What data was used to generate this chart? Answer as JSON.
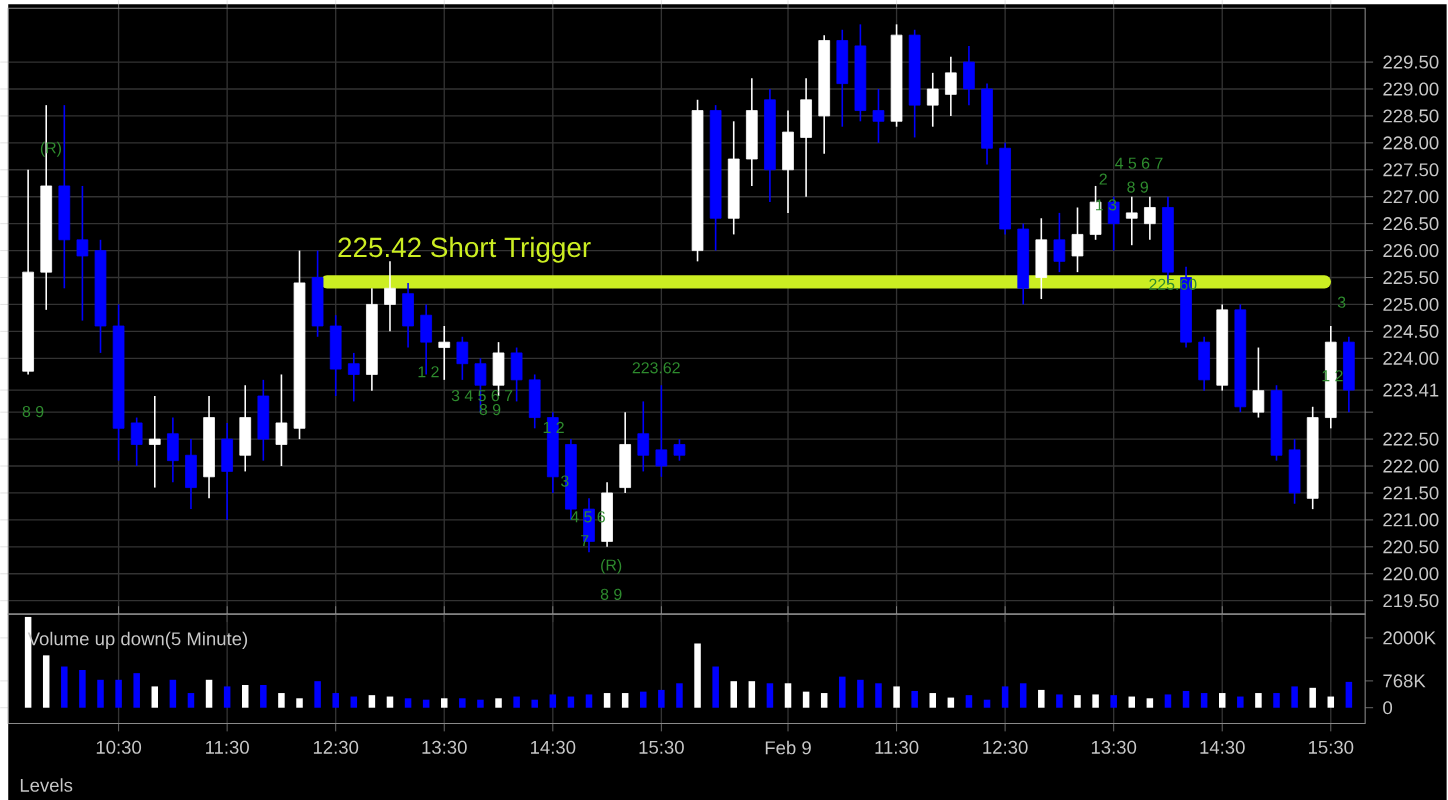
{
  "chart_data": [
    {
      "type": "candlestick",
      "ylim": [
        219.25,
        230.5
      ],
      "grid": true,
      "tick_labels": "y",
      "categories": [
        null,
        null,
        null,
        null,
        null,
        null,
        null,
        null,
        null,
        null,
        null,
        null,
        null,
        null,
        null,
        null,
        null,
        null,
        null,
        null,
        null,
        null,
        null,
        null,
        null,
        null,
        null,
        null,
        null,
        null,
        null,
        null,
        null,
        null,
        null,
        null,
        null,
        null,
        null,
        null,
        null,
        null,
        null,
        null,
        null,
        null,
        null,
        null,
        null,
        null,
        null,
        null,
        null,
        null,
        null,
        null,
        null,
        null,
        null,
        null,
        null,
        null,
        null,
        null,
        null,
        null,
        null,
        null,
        null,
        null,
        null,
        null,
        null,
        null
      ],
      "ohlc": [
        [
          223.76,
          227.5,
          223.7,
          225.6
        ],
        [
          225.6,
          228.7,
          224.9,
          227.2
        ],
        [
          227.2,
          228.7,
          225.3,
          226.2
        ],
        [
          226.2,
          227.2,
          224.7,
          225.9
        ],
        [
          226.0,
          226.2,
          224.1,
          224.6
        ],
        [
          224.6,
          225.0,
          222.1,
          222.7
        ],
        [
          222.8,
          222.9,
          222.0,
          222.4
        ],
        [
          222.4,
          223.3,
          221.6,
          222.5
        ],
        [
          222.6,
          222.9,
          221.7,
          222.1
        ],
        [
          222.2,
          222.5,
          221.2,
          221.6
        ],
        [
          221.8,
          223.3,
          221.4,
          222.9
        ],
        [
          222.5,
          222.8,
          221.0,
          221.9
        ],
        [
          222.2,
          223.5,
          221.9,
          222.9
        ],
        [
          223.3,
          223.6,
          222.1,
          222.5
        ],
        [
          222.4,
          223.7,
          222.0,
          222.8
        ],
        [
          222.7,
          226.0,
          222.5,
          225.4
        ],
        [
          225.5,
          226.0,
          224.4,
          224.6
        ],
        [
          224.6,
          224.8,
          223.3,
          223.8
        ],
        [
          223.9,
          224.1,
          223.2,
          223.7
        ],
        [
          223.7,
          225.3,
          223.4,
          225.0
        ],
        [
          225.0,
          225.8,
          224.5,
          225.3
        ],
        [
          225.2,
          225.4,
          224.2,
          224.6
        ],
        [
          224.8,
          225.0,
          223.7,
          224.3
        ],
        [
          224.2,
          224.6,
          223.6,
          224.3
        ],
        [
          224.3,
          224.4,
          223.6,
          223.9
        ],
        [
          223.9,
          224.0,
          223.0,
          223.5
        ],
        [
          223.5,
          224.3,
          223.3,
          224.1
        ],
        [
          224.1,
          224.2,
          223.2,
          223.6
        ],
        [
          223.6,
          223.7,
          222.7,
          222.9
        ],
        [
          222.9,
          223.0,
          221.5,
          221.8
        ],
        [
          222.4,
          222.5,
          221.0,
          221.2
        ],
        [
          221.2,
          221.4,
          220.4,
          220.6
        ],
        [
          220.6,
          221.7,
          220.5,
          221.5
        ],
        [
          221.6,
          223.0,
          221.5,
          222.4
        ],
        [
          222.6,
          223.2,
          221.9,
          222.2
        ],
        [
          222.3,
          223.5,
          221.8,
          222.0
        ],
        [
          222.4,
          222.5,
          222.1,
          222.2
        ],
        [
          226.0,
          228.8,
          225.8,
          228.6
        ],
        [
          228.6,
          228.7,
          226.0,
          226.6
        ],
        [
          226.6,
          228.4,
          226.3,
          227.7
        ],
        [
          227.7,
          229.2,
          227.2,
          228.6
        ],
        [
          228.8,
          229.0,
          226.9,
          227.5
        ],
        [
          227.5,
          228.6,
          226.7,
          228.2
        ],
        [
          228.1,
          229.2,
          227.0,
          228.8
        ],
        [
          228.5,
          230.0,
          227.8,
          229.9
        ],
        [
          229.9,
          230.1,
          228.3,
          229.1
        ],
        [
          229.8,
          230.2,
          228.4,
          228.6
        ],
        [
          228.6,
          229.0,
          228.0,
          228.4
        ],
        [
          228.4,
          230.2,
          228.3,
          230.0
        ],
        [
          230.0,
          230.1,
          228.1,
          228.7
        ],
        [
          228.7,
          229.3,
          228.3,
          229.0
        ],
        [
          228.9,
          229.6,
          228.5,
          229.3
        ],
        [
          229.5,
          229.8,
          228.7,
          229.0
        ],
        [
          229.0,
          229.1,
          227.6,
          227.9
        ],
        [
          227.9,
          228.0,
          226.3,
          226.4
        ],
        [
          226.4,
          226.5,
          225.0,
          225.3
        ],
        [
          225.5,
          226.6,
          225.1,
          226.2
        ],
        [
          226.2,
          226.7,
          225.6,
          225.8
        ],
        [
          225.9,
          226.8,
          225.6,
          226.3
        ],
        [
          226.3,
          227.2,
          226.2,
          226.9
        ],
        [
          226.9,
          227.0,
          226.0,
          226.5
        ],
        [
          226.6,
          227.0,
          226.1,
          226.7
        ],
        [
          226.5,
          227.0,
          226.2,
          226.8
        ],
        [
          226.8,
          227.0,
          225.4,
          225.6
        ],
        [
          225.5,
          225.7,
          224.2,
          224.3
        ],
        [
          224.3,
          224.4,
          223.4,
          223.6
        ],
        [
          223.5,
          225.0,
          223.4,
          224.9
        ],
        [
          224.9,
          225.0,
          223.0,
          223.1
        ],
        [
          223.0,
          224.2,
          222.9,
          223.4
        ],
        [
          223.4,
          223.5,
          222.1,
          222.2
        ],
        [
          222.3,
          222.5,
          221.3,
          221.5
        ],
        [
          221.4,
          223.1,
          221.2,
          222.9
        ],
        [
          222.9,
          224.6,
          222.7,
          224.3
        ],
        [
          224.3,
          224.4,
          223.0,
          223.41
        ]
      ],
      "colors": [
        "#ffffff",
        "#ffffff",
        "#0000ff",
        "#0000ff",
        "#0000ff",
        "#0000ff",
        "#0000ff",
        "#ffffff",
        "#0000ff",
        "#0000ff",
        "#ffffff",
        "#0000ff",
        "#ffffff",
        "#0000ff",
        "#ffffff",
        "#ffffff",
        "#0000ff",
        "#0000ff",
        "#0000ff",
        "#ffffff",
        "#ffffff",
        "#0000ff",
        "#0000ff",
        "#ffffff",
        "#0000ff",
        "#0000ff",
        "#ffffff",
        "#0000ff",
        "#0000ff",
        "#0000ff",
        "#0000ff",
        "#0000ff",
        "#ffffff",
        "#ffffff",
        "#0000ff",
        "#0000ff",
        "#0000ff",
        "#ffffff",
        "#0000ff",
        "#ffffff",
        "#ffffff",
        "#0000ff",
        "#ffffff",
        "#ffffff",
        "#ffffff",
        "#0000ff",
        "#0000ff",
        "#0000ff",
        "#ffffff",
        "#0000ff",
        "#ffffff",
        "#ffffff",
        "#0000ff",
        "#0000ff",
        "#0000ff",
        "#0000ff",
        "#ffffff",
        "#0000ff",
        "#ffffff",
        "#ffffff",
        "#0000ff",
        "#ffffff",
        "#ffffff",
        "#0000ff",
        "#0000ff",
        "#0000ff",
        "#ffffff",
        "#0000ff",
        "#ffffff",
        "#0000ff",
        "#0000ff",
        "#ffffff",
        "#ffffff",
        "#0000ff"
      ],
      "yticks": [
        {
          "value": 219.5,
          "label": "219.50"
        },
        {
          "value": 220,
          "label": "220.00"
        },
        {
          "value": 220.5,
          "label": "220.50"
        },
        {
          "value": 221,
          "label": "221.00"
        },
        {
          "value": 221.5,
          "label": "221.50"
        },
        {
          "value": 222,
          "label": "222.00"
        },
        {
          "value": 222.5,
          "label": "222.50"
        },
        {
          "value": 223,
          "label": null
        },
        {
          "value": 223.41,
          "label": "223.41"
        },
        {
          "value": 224,
          "label": "224.00"
        },
        {
          "value": 224.5,
          "label": "224.50"
        },
        {
          "value": 225,
          "label": "225.00"
        },
        {
          "value": 225.5,
          "label": "225.50"
        },
        {
          "value": 226,
          "label": "226.00"
        },
        {
          "value": 226.5,
          "label": "226.50"
        },
        {
          "value": 227,
          "label": "227.00"
        },
        {
          "value": 227.5,
          "label": "227.50"
        },
        {
          "value": 228,
          "label": "228.00"
        },
        {
          "value": 228.5,
          "label": "228.50"
        },
        {
          "value": 229,
          "label": "229.00"
        },
        {
          "value": 229.5,
          "label": "229.50"
        }
      ],
      "ref_lines": [
        {
          "axis": "y",
          "value": 225.42,
          "label": "225.42 Short Trigger",
          "color": "#ccee22"
        }
      ],
      "annotations": [
        "(R)",
        "8 9",
        "1 2",
        "3 4 5 6 7",
        "8 9",
        "1 2",
        "3",
        "4 5 6",
        "7",
        "(R)",
        "8 9",
        "223.62",
        "225.60",
        "1 3",
        "2",
        "4 5 6 7",
        "8 9",
        "3",
        "1 2"
      ]
    },
    {
      "type": "bar",
      "title": "Volume up down(5 Minute)",
      "ylim": [
        -450,
        2680
      ],
      "grid": "x",
      "categories": [
        null,
        null,
        null,
        null,
        null,
        "10:30",
        null,
        null,
        null,
        null,
        null,
        "11:30",
        null,
        null,
        null,
        null,
        null,
        "12:30",
        null,
        null,
        null,
        null,
        null,
        "13:30",
        null,
        null,
        null,
        null,
        null,
        "14:30",
        null,
        null,
        null,
        null,
        null,
        "15:30",
        null,
        null,
        null,
        null,
        null,
        null,
        "Feb 9",
        null,
        null,
        null,
        null,
        null,
        "11:30",
        null,
        null,
        null,
        null,
        null,
        "12:30",
        null,
        null,
        null,
        null,
        null,
        "13:30",
        null,
        null,
        null,
        null,
        null,
        "14:30",
        null,
        null,
        null,
        null,
        null,
        "15:30",
        null
      ],
      "values": [
        2600,
        1500,
        1180,
        1080,
        800,
        800,
        990,
        610,
        800,
        420,
        800,
        610,
        650,
        650,
        420,
        270,
        760,
        420,
        320,
        360,
        320,
        270,
        230,
        270,
        270,
        230,
        270,
        320,
        230,
        380,
        320,
        380,
        420,
        420,
        460,
        510,
        700,
        1840,
        1180,
        760,
        760,
        700,
        700,
        460,
        420,
        890,
        800,
        700,
        610,
        480,
        420,
        290,
        360,
        230,
        610,
        700,
        510,
        380,
        360,
        380,
        360,
        320,
        270,
        380,
        480,
        420,
        420,
        320,
        420,
        420,
        610,
        570,
        320,
        740
      ],
      "colors": [
        "#ffffff",
        "#ffffff",
        "#0000ff",
        "#0000ff",
        "#0000ff",
        "#0000ff",
        "#0000ff",
        "#ffffff",
        "#0000ff",
        "#0000ff",
        "#ffffff",
        "#0000ff",
        "#ffffff",
        "#0000ff",
        "#ffffff",
        "#ffffff",
        "#0000ff",
        "#0000ff",
        "#0000ff",
        "#ffffff",
        "#ffffff",
        "#0000ff",
        "#0000ff",
        "#ffffff",
        "#0000ff",
        "#0000ff",
        "#ffffff",
        "#0000ff",
        "#0000ff",
        "#0000ff",
        "#0000ff",
        "#0000ff",
        "#ffffff",
        "#ffffff",
        "#0000ff",
        "#0000ff",
        "#0000ff",
        "#ffffff",
        "#0000ff",
        "#ffffff",
        "#ffffff",
        "#0000ff",
        "#ffffff",
        "#ffffff",
        "#ffffff",
        "#0000ff",
        "#0000ff",
        "#0000ff",
        "#ffffff",
        "#0000ff",
        "#ffffff",
        "#ffffff",
        "#0000ff",
        "#0000ff",
        "#0000ff",
        "#0000ff",
        "#ffffff",
        "#0000ff",
        "#ffffff",
        "#ffffff",
        "#0000ff",
        "#ffffff",
        "#ffffff",
        "#0000ff",
        "#0000ff",
        "#0000ff",
        "#ffffff",
        "#0000ff",
        "#ffffff",
        "#0000ff",
        "#0000ff",
        "#ffffff",
        "#ffffff",
        "#0000ff"
      ],
      "yticks": [
        0,
        {
          "value": 768,
          "label": "768K"
        },
        {
          "value": 2000,
          "label": "2000K"
        }
      ],
      "annotations": [
        "Levels"
      ]
    }
  ]
}
